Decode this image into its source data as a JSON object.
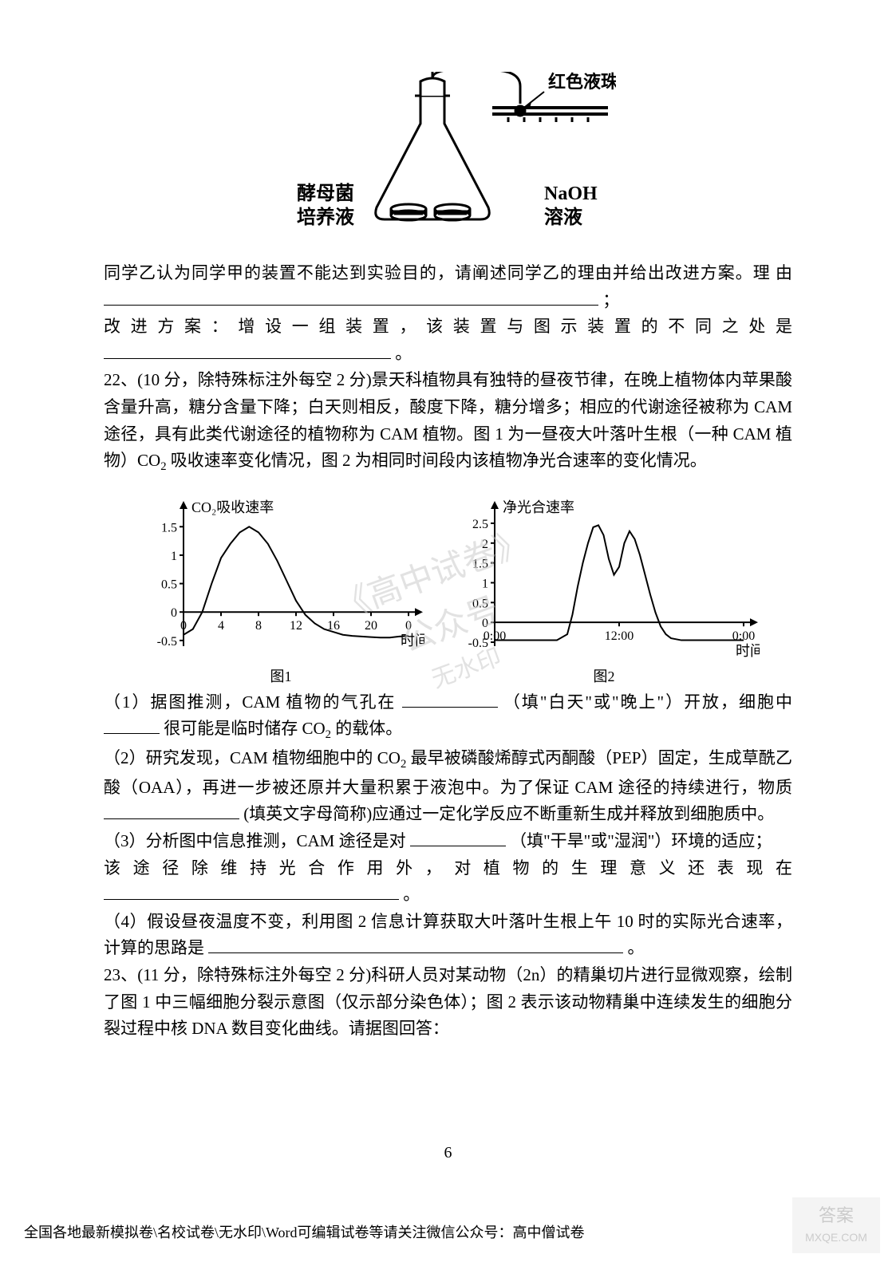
{
  "apparatus": {
    "left_label_line1": "酵母菌",
    "left_label_line2": "培养液",
    "top_label": "红色液珠",
    "right_label_line1": "NaOH",
    "right_label_line2": "溶液",
    "flask_stroke": "#000000",
    "flask_fill": "#ffffff",
    "bead_fill": "#000000",
    "font_size_pt": 18
  },
  "text": {
    "p1a": "同学乙认为同学甲的装置不能达到实验目的，请阐述同学乙的理由并给出改进方案。理",
    "p1b": "由",
    "p1c": "；",
    "p2a": "改进方案：增设一组装置，该装置与图示装置的不同之处是",
    "p2b": "。",
    "q22a": "22、(10 分，除特殊标注外每空 2 分)景天科植物具有独特的昼夜节律，在晚上植物体内苹果酸含量升高，糖分含量下降；白天则相反，酸度下降，糖分增多；相应的代谢途径被称为 CAM 途径，具有此类代谢途径的植物称为 CAM 植物。图 1 为一昼夜大叶落叶生根（一种 CAM 植物）CO",
    "q22a_sub": "2",
    "q22a_cont": " 吸收速率变化情况，图 2 为相同时间段内该植物净光合速率的变化情况。",
    "q22_1a": "（1）据图推测，CAM 植物的气孔在",
    "q22_1b": "（填\"白天\"或\"晚上\"）开放，细胞中",
    "q22_1c": "很可能是临时储存 CO",
    "q22_1c_sub": "2",
    "q22_1c_cont": " 的载体。",
    "q22_2a": "（2）研究发现，CAM 植物细胞中的 CO",
    "q22_2a_sub": "2",
    "q22_2a_cont": " 最早被磷酸烯醇式丙酮酸（PEP）固定，生成草酰乙酸（OAA），再进一步被还原并大量积累于液泡中。为了保证 CAM 途径的持续进行，物质",
    "q22_2b": "(填英文字母简称)应通过一定化学反应不断重新生成并释放到细胞质中。",
    "q22_3a": "（3）分析图中信息推测，CAM 途径是对",
    "q22_3b": "（填\"干旱\"或\"湿润\"）环境的适应；",
    "q22_3c": "该途径除维持光合作用外，对植物的生理意义还表现在",
    "q22_3d": "。",
    "q22_4a": "（4）假设昼夜温度不变，利用图 2 信息计算获取大叶落叶生根上午 10 时的实际光合速率，",
    "q22_4b": "计算的思路是",
    "q22_4c": "。",
    "q23": "23、(11 分，除特殊标注外每空 2 分)科研人员对某动物（2n）的精巢切片进行显微观察，绘制了图 1 中三幅细胞分裂示意图（仅示部分染色体）；图 2 表示该动物精巢中连续发生的细胞分裂过程中核 DNA 数目变化曲线。请据图回答："
  },
  "chart1": {
    "type": "line",
    "title": "图1",
    "y_axis_label": "CO₂吸收速率",
    "x_axis_label": "时间",
    "x_ticks": [
      0,
      4,
      8,
      12,
      16,
      20,
      0
    ],
    "x_tick_labels": [
      "0",
      "4",
      "8",
      "12",
      "16",
      "20",
      "0"
    ],
    "y_ticks": [
      -0.5,
      0,
      0.5,
      1,
      1.5
    ],
    "y_tick_labels": [
      "-0.5",
      "0",
      "0.5",
      "1",
      "1.5"
    ],
    "xlim": [
      0,
      24
    ],
    "ylim": [
      -0.6,
      1.7
    ],
    "background_color": "#ffffff",
    "axis_color": "#000000",
    "line_color": "#000000",
    "line_width": 2,
    "font_size_pt": 16,
    "points": [
      [
        0,
        -0.4
      ],
      [
        1,
        -0.3
      ],
      [
        2,
        0.0
      ],
      [
        3,
        0.5
      ],
      [
        4,
        0.95
      ],
      [
        5,
        1.2
      ],
      [
        6,
        1.4
      ],
      [
        7,
        1.5
      ],
      [
        8,
        1.4
      ],
      [
        9,
        1.2
      ],
      [
        10,
        0.9
      ],
      [
        11,
        0.55
      ],
      [
        12,
        0.2
      ],
      [
        13,
        -0.05
      ],
      [
        14,
        -0.2
      ],
      [
        15,
        -0.3
      ],
      [
        16,
        -0.35
      ],
      [
        17,
        -0.4
      ],
      [
        18,
        -0.42
      ],
      [
        19,
        -0.43
      ],
      [
        20,
        -0.44
      ],
      [
        21,
        -0.45
      ],
      [
        22,
        -0.45
      ],
      [
        23,
        -0.43
      ],
      [
        24,
        -0.42
      ]
    ]
  },
  "chart2": {
    "type": "line",
    "title": "图2",
    "y_axis_label": "净光合速率",
    "x_axis_label": "时间",
    "x_tick_labels": [
      "0:00",
      "12:00",
      "0:00"
    ],
    "x_tick_positions": [
      0,
      12,
      24
    ],
    "y_ticks": [
      -0.5,
      0,
      0.5,
      1,
      1.5,
      2,
      2.5
    ],
    "y_tick_labels": [
      "-0.5",
      "0",
      "0.5",
      "1",
      "1.5",
      "2",
      "2.5"
    ],
    "xlim": [
      0,
      24
    ],
    "ylim": [
      -0.6,
      2.7
    ],
    "background_color": "#ffffff",
    "axis_color": "#000000",
    "line_color": "#000000",
    "line_width": 2,
    "font_size_pt": 16,
    "points": [
      [
        0,
        -0.45
      ],
      [
        1,
        -0.45
      ],
      [
        2,
        -0.45
      ],
      [
        3,
        -0.45
      ],
      [
        4,
        -0.45
      ],
      [
        5,
        -0.45
      ],
      [
        6,
        -0.45
      ],
      [
        7,
        -0.3
      ],
      [
        7.5,
        0.2
      ],
      [
        8,
        0.9
      ],
      [
        8.5,
        1.5
      ],
      [
        9,
        2.0
      ],
      [
        9.5,
        2.4
      ],
      [
        10,
        2.45
      ],
      [
        10.5,
        2.2
      ],
      [
        11,
        1.6
      ],
      [
        11.5,
        1.2
      ],
      [
        12,
        1.4
      ],
      [
        12.5,
        2.0
      ],
      [
        13,
        2.3
      ],
      [
        13.5,
        2.1
      ],
      [
        14,
        1.7
      ],
      [
        14.5,
        1.2
      ],
      [
        15,
        0.7
      ],
      [
        15.5,
        0.25
      ],
      [
        16,
        -0.1
      ],
      [
        16.5,
        -0.3
      ],
      [
        17,
        -0.4
      ],
      [
        18,
        -0.45
      ],
      [
        19,
        -0.45
      ],
      [
        20,
        -0.45
      ],
      [
        21,
        -0.45
      ],
      [
        22,
        -0.45
      ],
      [
        23,
        -0.45
      ],
      [
        24,
        -0.45
      ]
    ]
  },
  "watermark_center": {
    "line1": "《高中试卷》",
    "line2": "公众号",
    "line3": "无水印",
    "color": "#cccccc"
  },
  "page_number": "6",
  "footer": "全国各地最新模拟卷\\名校试卷\\无水印\\Word可编辑试卷等请关注微信公众号：高中僧试卷",
  "corner_logo": {
    "line1": "答案",
    "line2": "MXQE.COM",
    "bg_color": "#d9d9d9",
    "text_color": "#888888"
  }
}
